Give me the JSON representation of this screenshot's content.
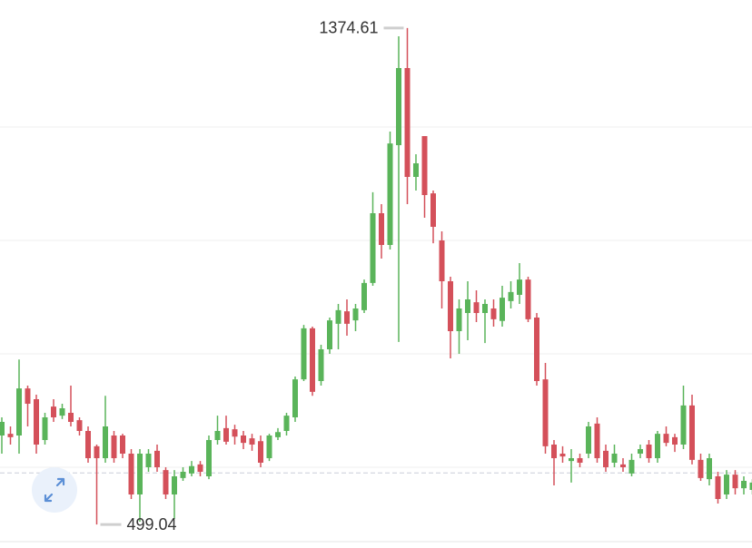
{
  "chart_data": {
    "type": "candlestick",
    "up_color": "#5ab45a",
    "down_color": "#d4505a",
    "ylim": [
      457.6,
      1424
    ],
    "gridlines": [
      600,
      800,
      1000,
      1200
    ],
    "price_line": 590,
    "open": [
      656,
      659,
      656,
      739,
      720,
      648,
      707,
      691,
      696,
      683,
      664,
      637,
      616,
      656,
      656,
      624,
      552,
      600,
      629,
      595,
      552,
      581,
      589,
      605,
      584,
      648,
      669,
      667,
      656,
      651,
      646,
      616,
      653,
      664,
      688,
      755,
      845,
      752,
      808,
      853,
      875,
      859,
      877,
      925,
      1048,
      992,
      1168,
      1304,
      1112,
      1184,
      1083,
      1000,
      928,
      840,
      872,
      891,
      872,
      880,
      858,
      893,
      904,
      931,
      864,
      755,
      640,
      624,
      611,
      616,
      624,
      677,
      629,
      608,
      605,
      589,
      624,
      640,
      616,
      659,
      653,
      640,
      709,
      613,
      579,
      584,
      552,
      587,
      563,
      560
    ],
    "high": [
      688,
      672,
      790,
      744,
      728,
      696,
      720,
      712,
      744,
      688,
      672,
      640,
      726,
      664,
      659,
      632,
      632,
      632,
      640,
      600,
      595,
      600,
      611,
      611,
      656,
      691,
      691,
      675,
      664,
      659,
      656,
      659,
      669,
      696,
      760,
      851,
      848,
      816,
      864,
      888,
      896,
      888,
      931,
      1085,
      1064,
      1192,
      1360,
      1374.61,
      1152,
      1184,
      1088,
      1016,
      936,
      896,
      928,
      912,
      896,
      896,
      920,
      928,
      960,
      936,
      872,
      784,
      648,
      637,
      632,
      624,
      680,
      688,
      640,
      640,
      616,
      624,
      640,
      648,
      664,
      672,
      659,
      744,
      728,
      624,
      624,
      592,
      595,
      595,
      584,
      579
    ],
    "low": [
      624,
      640,
      624,
      672,
      624,
      640,
      680,
      685,
      672,
      656,
      608,
      499.04,
      608,
      608,
      616,
      544,
      504,
      592,
      592,
      544,
      509,
      576,
      584,
      584,
      579,
      640,
      640,
      640,
      632,
      629,
      600,
      611,
      648,
      656,
      680,
      752,
      726,
      744,
      800,
      808,
      832,
      840,
      872,
      920,
      968,
      984,
      821,
      1064,
      1088,
      1040,
      995,
      880,
      792,
      800,
      824,
      856,
      819,
      848,
      848,
      880,
      888,
      856,
      744,
      624,
      568,
      608,
      573,
      600,
      616,
      608,
      592,
      600,
      592,
      584,
      616,
      608,
      608,
      637,
      627,
      632,
      605,
      576,
      568,
      536,
      544,
      552,
      552,
      552
    ],
    "close": [
      680,
      653,
      739,
      712,
      640,
      688,
      688,
      704,
      680,
      664,
      616,
      616,
      672,
      616,
      624,
      552,
      624,
      624,
      600,
      552,
      584,
      592,
      602,
      592,
      648,
      664,
      645,
      654,
      643,
      640,
      608,
      656,
      662,
      691,
      755,
      845,
      733,
      808,
      859,
      877,
      853,
      880,
      925,
      1048,
      992,
      1171,
      1304,
      1112,
      1136,
      1080,
      1024,
      928,
      840,
      880,
      896,
      872,
      888,
      861,
      899,
      909,
      931,
      861,
      752,
      637,
      616,
      619,
      616,
      608,
      672,
      616,
      600,
      624,
      600,
      613,
      632,
      616,
      659,
      643,
      640,
      709,
      613,
      581,
      616,
      544,
      587,
      563,
      576,
      573
    ]
  }
}
